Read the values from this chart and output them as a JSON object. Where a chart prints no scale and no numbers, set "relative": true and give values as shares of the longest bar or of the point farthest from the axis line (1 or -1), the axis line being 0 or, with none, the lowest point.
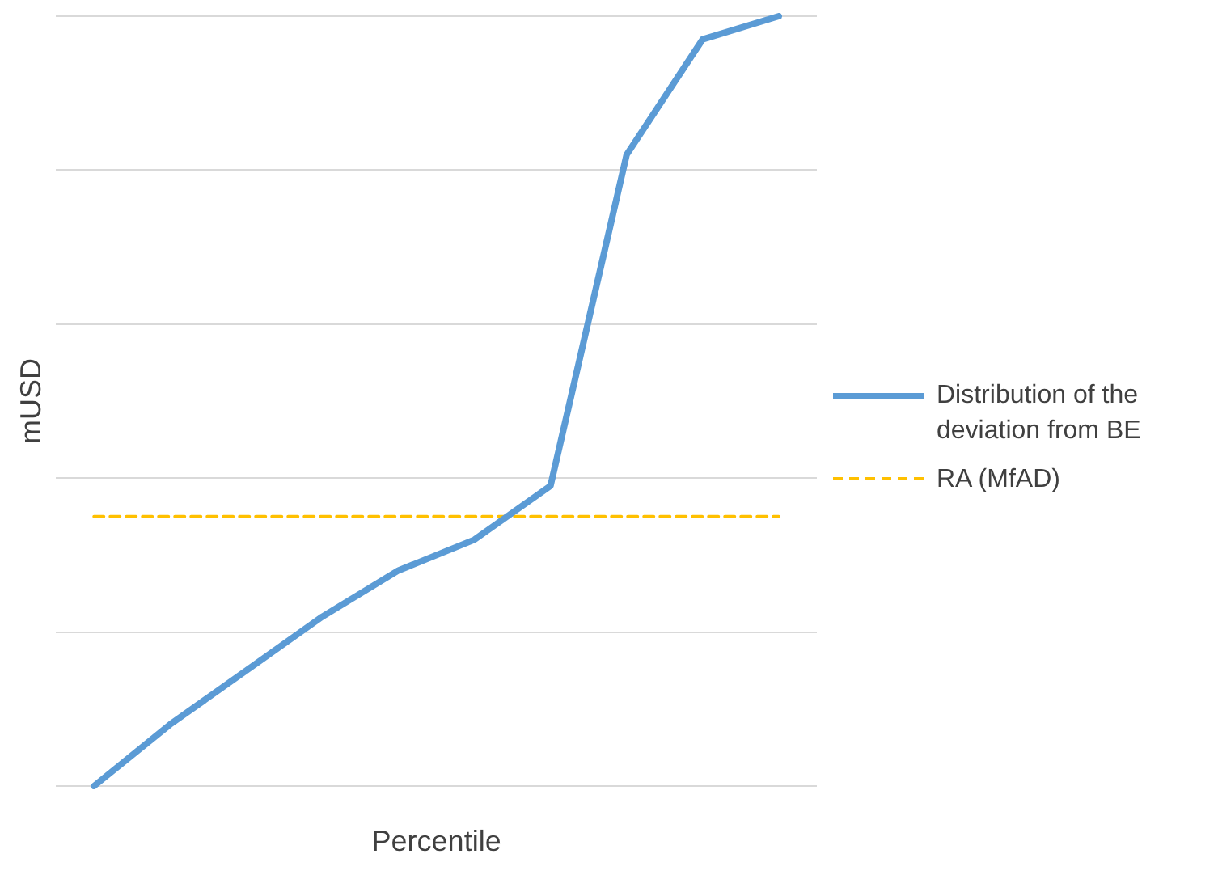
{
  "chart_data": {
    "type": "line",
    "relative": true,
    "xlabel": "Percentile",
    "ylabel": "mUSD",
    "categories": [
      null,
      null,
      null,
      null,
      null,
      null,
      null,
      null,
      null,
      null
    ],
    "series": [
      {
        "name": "Distribution of the deviation from BE",
        "color": "#5b9bd5",
        "values": [
          0,
          0.08,
          0.15,
          0.22,
          0.28,
          0.32,
          0.39,
          0.82,
          0.97,
          1
        ]
      },
      {
        "name": "RA (MfAD)",
        "color": "#ffc000",
        "line_style": "dashed",
        "values": [
          0.35,
          0.35,
          0.35,
          0.35,
          0.35,
          0.35,
          0.35,
          0.35,
          0.35,
          0.35
        ]
      }
    ],
    "grid": "y",
    "legend": "right",
    "marker": "none",
    "line_style": "solid"
  }
}
